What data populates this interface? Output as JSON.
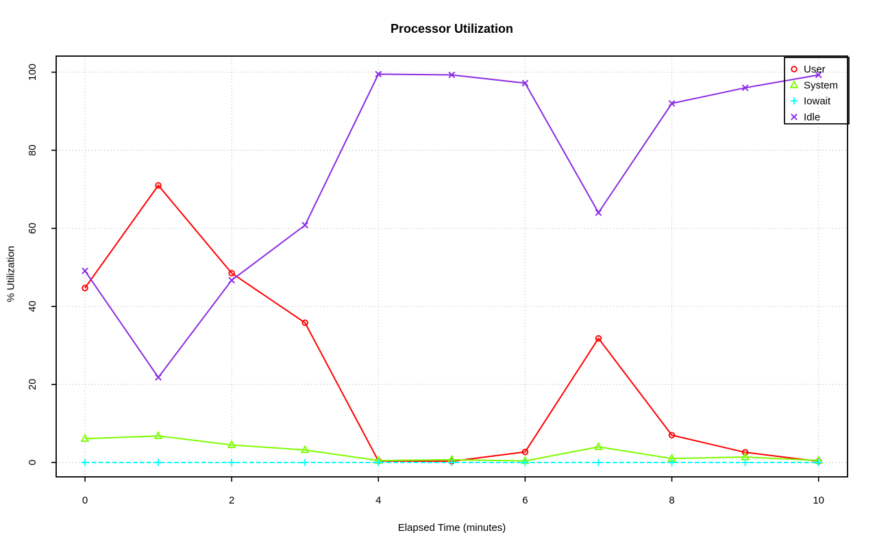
{
  "figure": {
    "background": "#ffffff",
    "axis_color": "#000000",
    "grid_color": "#c6c6c6",
    "text_color": "#000000"
  },
  "chart_data": {
    "type": "line",
    "title": "Processor Utilization",
    "xlabel": "Elapsed Time (minutes)",
    "ylabel": "% Utilization",
    "x": [
      0,
      1,
      2,
      3,
      4,
      5,
      6,
      7,
      8,
      9,
      10
    ],
    "x_ticks": [
      0,
      2,
      4,
      6,
      8,
      10
    ],
    "y_ticks": [
      0,
      20,
      40,
      60,
      80,
      100
    ],
    "xlim": [
      -0.45,
      10.45
    ],
    "ylim": [
      -3.5,
      104
    ],
    "grid": "dotted gridlines at labeled ticks, both axes",
    "legend_position": "top-right",
    "series": [
      {
        "name": "User",
        "color": "#ff0000",
        "marker": "circle",
        "line_style": "solid",
        "values": [
          44.7,
          71.0,
          48.5,
          35.8,
          0.4,
          0.3,
          2.7,
          31.8,
          7.0,
          2.6,
          0.3
        ]
      },
      {
        "name": "System",
        "color": "#7cfc00",
        "marker": "triangle",
        "line_style": "solid",
        "values": [
          6.1,
          6.8,
          4.5,
          3.2,
          0.5,
          0.7,
          0.4,
          4.0,
          1.0,
          1.4,
          0.5
        ]
      },
      {
        "name": "Iowait",
        "color": "#00ffff",
        "marker": "plus",
        "line_style": "dashed",
        "values": [
          0,
          0,
          0,
          0,
          0,
          0,
          0,
          0,
          0,
          0,
          0
        ]
      },
      {
        "name": "Idle",
        "color": "#8a2be2",
        "marker": "x",
        "line_style": "solid",
        "values": [
          49.1,
          21.8,
          46.7,
          60.8,
          99.5,
          99.3,
          97.2,
          64.0,
          92.0,
          96.0,
          99.3
        ]
      }
    ]
  }
}
